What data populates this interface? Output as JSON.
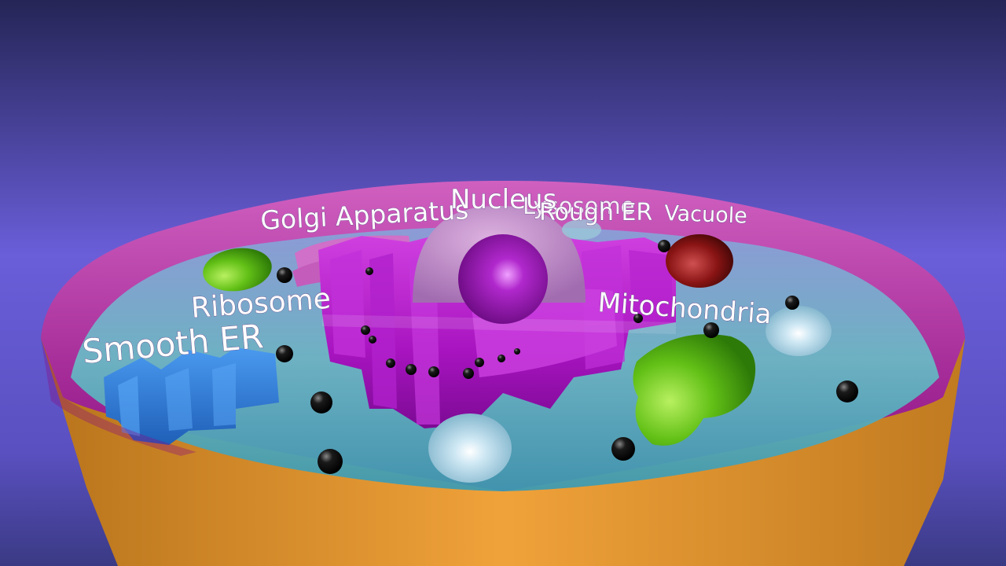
{
  "labels": {
    "golgi": "Golgi Apparatus",
    "nucleus": "Nucleus",
    "lysosome": "Lysosome",
    "rough_er": "Rough ER",
    "vacuole": "Vacuole",
    "ribosome": "Ribosome",
    "smooth_er": "Smooth ER",
    "mitochondria": "Mitochondria"
  },
  "colors": {
    "sky_top": "#252556",
    "sky_mid": "#6a5ed9",
    "sky_bottom": "#3a3a84",
    "membrane_rim": "#a0108f",
    "cell_wall": "#e89a32",
    "cytoplasm": "#6ab8c4",
    "rough_er": "#b018c8",
    "nucleus": "#c48ccf",
    "nucleolus": "#9a18b4",
    "smooth_er": "#2f7fd8",
    "mitochondria": "#6ac818",
    "vacuole": "#9a1a1a",
    "lysosome": "#cfe6f2",
    "ribosome": "#111111"
  }
}
